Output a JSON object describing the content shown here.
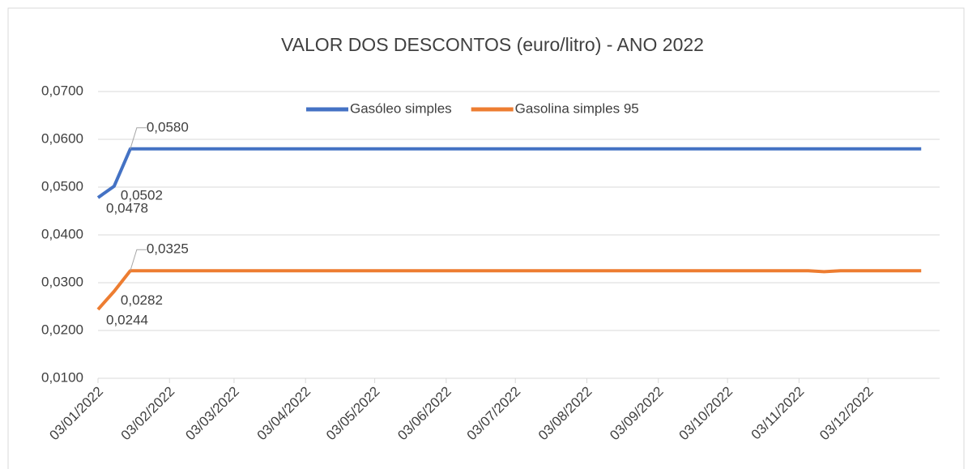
{
  "chart_data": {
    "type": "line",
    "title": "VALOR DOS DESCONTOS (euro/litro) - ANO 2022",
    "x": [
      "03/01/2022",
      "10/01/2022",
      "17/01/2022",
      "07/11/2022",
      "14/11/2022",
      "21/11/2022",
      "26/12/2022"
    ],
    "series": [
      {
        "name": "Gasóleo simples",
        "color": "#4472c4",
        "values": [
          0.0478,
          0.0502,
          0.058,
          0.058,
          0.058,
          0.058,
          0.058
        ],
        "value_labels": [
          "0,0478",
          "0,0502",
          "0,0580",
          null,
          null,
          null,
          null
        ]
      },
      {
        "name": "Gasolina simples 95",
        "color": "#ed7d31",
        "values": [
          0.0244,
          0.0282,
          0.0325,
          0.0325,
          0.0323,
          0.0325,
          0.0325
        ],
        "value_labels": [
          "0,0244",
          "0,0282",
          "0,0325",
          null,
          null,
          null,
          null
        ]
      }
    ],
    "xlim": [
      "03/01/2022",
      "03/01/2023"
    ],
    "xticks": [
      "03/01/2022",
      "03/02/2022",
      "03/03/2022",
      "03/04/2022",
      "03/05/2022",
      "03/06/2022",
      "03/07/2022",
      "03/08/2022",
      "03/09/2022",
      "03/10/2022",
      "03/11/2022",
      "03/12/2022"
    ],
    "ylim": [
      0.01,
      0.07
    ],
    "yticks": [
      {
        "value": 0.01,
        "label": "0,0100"
      },
      {
        "value": 0.02,
        "label": "0,0200"
      },
      {
        "value": 0.03,
        "label": "0,0300"
      },
      {
        "value": 0.04,
        "label": "0,0400"
      },
      {
        "value": 0.05,
        "label": "0,0500"
      },
      {
        "value": 0.06,
        "label": "0,0600"
      },
      {
        "value": 0.07,
        "label": "0,0700"
      }
    ],
    "grid": true,
    "legend": "top"
  }
}
